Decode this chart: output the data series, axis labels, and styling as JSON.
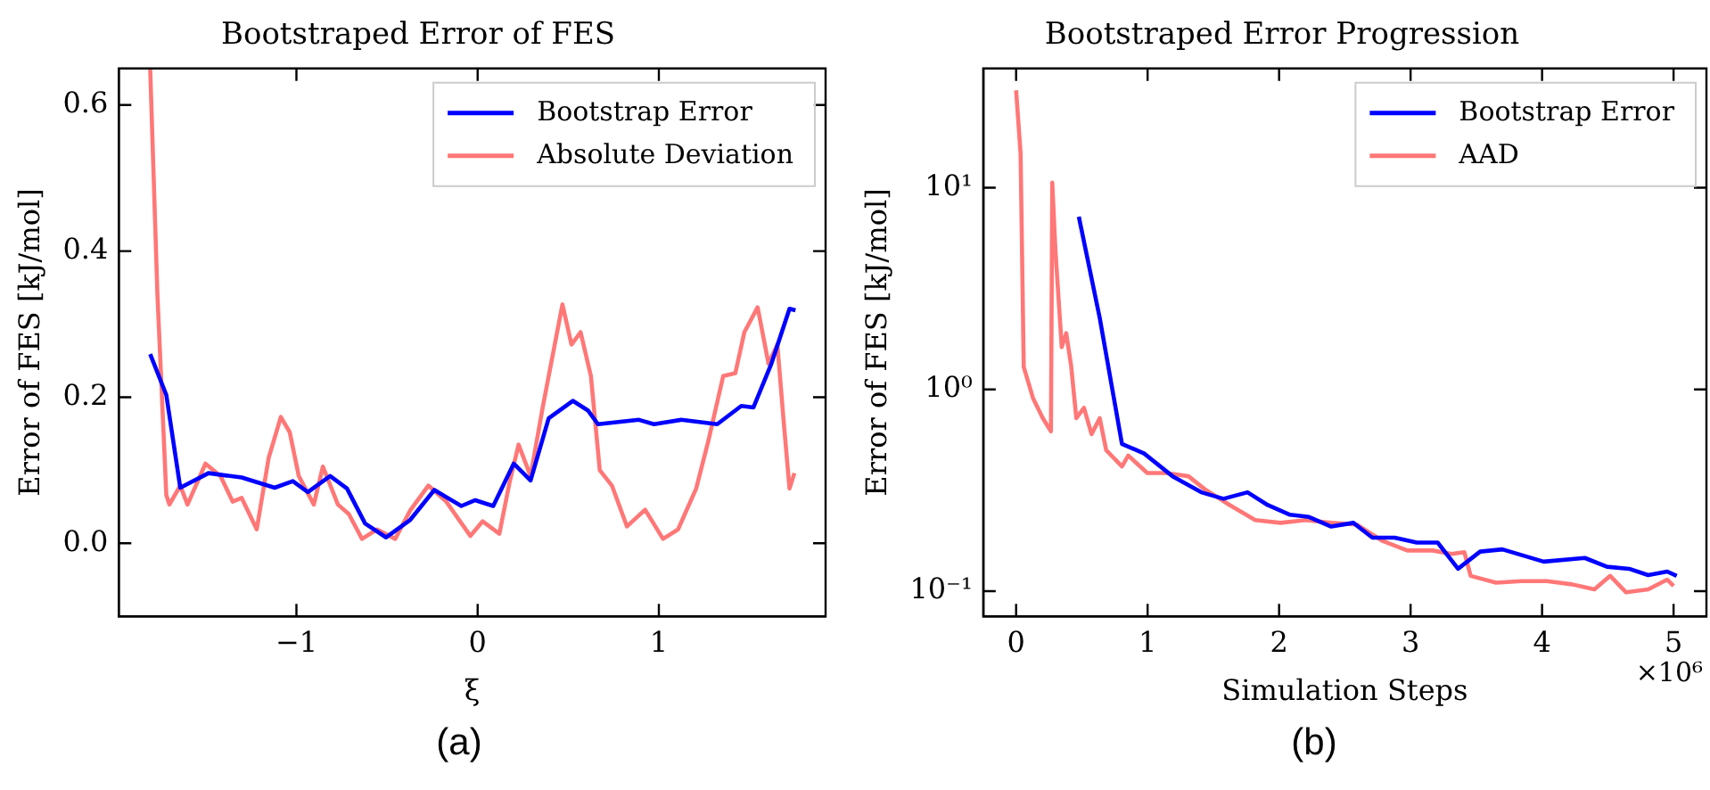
{
  "chart_data": [
    {
      "type": "line",
      "title": "Bootstraped Error of FES",
      "xlabel": "ξ",
      "ylabel": "Error of FES [kJ/mol]",
      "xlim": [
        -1.98,
        1.92
      ],
      "ylim": [
        -0.1,
        0.65
      ],
      "xticks": [
        {
          "value": -1,
          "label": "−1"
        },
        0,
        1
      ],
      "yticks": [
        {
          "value": 0,
          "label": "0.0"
        },
        {
          "value": 0.2,
          "label": "0.2"
        },
        {
          "value": 0.4,
          "label": "0.4"
        },
        {
          "value": 0.6,
          "label": "0.6"
        }
      ],
      "legend": "top right",
      "grid": false,
      "annotations": [
        "(a)"
      ],
      "series": [
        {
          "name": "Bootstrap Error",
          "color": "#0000ff",
          "x": [
            -1.807,
            -1.718,
            -1.641,
            -1.485,
            -1.302,
            -1.12,
            -1.02,
            -0.937,
            -0.814,
            -0.721,
            -0.621,
            -0.505,
            -0.372,
            -0.239,
            -0.09,
            -0.013,
            0.086,
            0.199,
            0.292,
            0.392,
            0.525,
            0.608,
            0.664,
            0.89,
            0.973,
            1.123,
            1.322,
            1.455,
            1.522,
            1.621,
            1.721,
            1.754
          ],
          "values": [
            0.259,
            0.203,
            0.076,
            0.096,
            0.09,
            0.076,
            0.085,
            0.07,
            0.092,
            0.075,
            0.027,
            0.008,
            0.032,
            0.073,
            0.051,
            0.059,
            0.051,
            0.109,
            0.086,
            0.171,
            0.195,
            0.182,
            0.163,
            0.169,
            0.163,
            0.169,
            0.163,
            0.188,
            0.186,
            0.246,
            0.321,
            0.319
          ]
        },
        {
          "name": "Absolute Deviation",
          "color": "#ff7777",
          "x": [
            -1.807,
            -1.767,
            -1.718,
            -1.701,
            -1.641,
            -1.601,
            -1.502,
            -1.419,
            -1.352,
            -1.302,
            -1.219,
            -1.153,
            -1.086,
            -1.037,
            -0.987,
            -0.904,
            -0.854,
            -0.771,
            -0.711,
            -0.638,
            -0.555,
            -0.455,
            -0.372,
            -0.272,
            -0.173,
            -0.04,
            0.027,
            0.12,
            0.176,
            0.226,
            0.292,
            0.359,
            0.468,
            0.518,
            0.568,
            0.625,
            0.674,
            0.741,
            0.824,
            0.924,
            1.023,
            1.106,
            1.206,
            1.272,
            1.355,
            1.422,
            1.472,
            1.545,
            1.605,
            1.654,
            1.688,
            1.721,
            1.748
          ],
          "values": [
            0.65,
            0.34,
            0.066,
            0.053,
            0.079,
            0.053,
            0.109,
            0.092,
            0.057,
            0.062,
            0.019,
            0.117,
            0.173,
            0.152,
            0.092,
            0.053,
            0.105,
            0.053,
            0.04,
            0.006,
            0.019,
            0.006,
            0.045,
            0.079,
            0.057,
            0.01,
            0.03,
            0.013,
            0.083,
            0.135,
            0.092,
            0.186,
            0.327,
            0.272,
            0.289,
            0.229,
            0.1,
            0.079,
            0.023,
            0.046,
            0.006,
            0.019,
            0.075,
            0.139,
            0.229,
            0.233,
            0.289,
            0.323,
            0.246,
            0.272,
            0.169,
            0.075,
            0.096
          ]
        }
      ]
    },
    {
      "type": "line",
      "title": "Bootstraped Error Progression",
      "xlabel": "Simulation Steps",
      "ylabel": "Error of FES [kJ/mol]",
      "log": "y",
      "xlim": [
        -0.25,
        5.25
      ],
      "ylim": [
        0.075,
        39
      ],
      "xticks": [
        0,
        1,
        2,
        3,
        4,
        5
      ],
      "yticks": [
        {
          "value": 0.1,
          "label": "10⁻¹"
        },
        {
          "value": 1,
          "label": "10⁰"
        },
        {
          "value": 10,
          "label": "10¹"
        }
      ],
      "legend": "top right",
      "grid": false,
      "annotations": [
        "(b)",
        "×10⁶"
      ],
      "series": [
        {
          "name": "Bootstrap Error",
          "color": "#0000ff",
          "x": [
            0.477,
            0.636,
            0.805,
            0.974,
            1.19,
            1.408,
            1.577,
            1.76,
            1.914,
            2.083,
            2.228,
            2.396,
            2.565,
            2.71,
            2.879,
            3.047,
            3.206,
            3.361,
            3.529,
            3.698,
            4.012,
            4.325,
            4.494,
            4.662,
            4.807,
            4.952,
            5.024
          ],
          "values": [
            7.18,
            2.26,
            0.537,
            0.481,
            0.371,
            0.309,
            0.287,
            0.309,
            0.267,
            0.239,
            0.233,
            0.209,
            0.218,
            0.184,
            0.184,
            0.174,
            0.174,
            0.129,
            0.157,
            0.161,
            0.14,
            0.146,
            0.132,
            0.129,
            0.12,
            0.125,
            0.119
          ]
        },
        {
          "name": "AAD",
          "color": "#ff7777",
          "x": [
            0,
            0.034,
            0.058,
            0.13,
            0.203,
            0.265,
            0.275,
            0.299,
            0.347,
            0.381,
            0.419,
            0.458,
            0.516,
            0.574,
            0.636,
            0.685,
            0.805,
            0.853,
            0.998,
            1.143,
            1.311,
            1.432,
            1.625,
            1.818,
            2.011,
            2.204,
            2.396,
            2.589,
            2.782,
            2.975,
            3.168,
            3.312,
            3.409,
            3.457,
            3.65,
            3.843,
            4.036,
            4.229,
            4.398,
            4.518,
            4.639,
            4.807,
            4.952,
            5.0
          ],
          "values": [
            30.4,
            14.8,
            1.29,
            0.9,
            0.72,
            0.62,
            10.6,
            4.9,
            1.62,
            1.9,
            1.3,
            0.72,
            0.81,
            0.6,
            0.72,
            0.5,
            0.415,
            0.47,
            0.385,
            0.385,
            0.371,
            0.321,
            0.267,
            0.225,
            0.218,
            0.225,
            0.218,
            0.214,
            0.178,
            0.159,
            0.159,
            0.153,
            0.156,
            0.119,
            0.11,
            0.112,
            0.112,
            0.108,
            0.102,
            0.119,
            0.0986,
            0.102,
            0.114,
            0.106
          ]
        }
      ]
    }
  ]
}
